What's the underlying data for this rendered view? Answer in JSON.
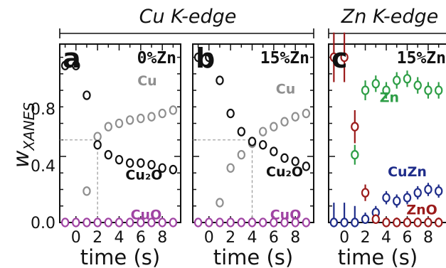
{
  "header": {
    "cu_title": "Cu K-edge",
    "zn_title": "Zn K-edge"
  },
  "y_axis": {
    "label_main": "w",
    "label_sub": "XANES",
    "ticks": [
      "0.0",
      "0.4",
      "0.8"
    ]
  },
  "x_axis": {
    "label": "time (s)",
    "ticks": [
      "0",
      "2",
      "4",
      "6",
      "8"
    ]
  },
  "chart_data": [
    {
      "type": "scatter",
      "panel": "a",
      "condition": "0%Zn",
      "xlabel": "time (s)",
      "ylabel": "wXANES",
      "xlim": [
        -1.5,
        9.7
      ],
      "ylim": [
        0,
        1.08
      ],
      "series": [
        {
          "name": "Cu",
          "color": "#8f8f8f",
          "label_pos": [
            6.6,
            0.83
          ],
          "x": [
            1,
            2,
            3,
            4,
            5,
            6,
            7,
            8,
            9
          ],
          "y": [
            0.19,
            0.52,
            0.58,
            0.6,
            0.62,
            0.63,
            0.64,
            0.66,
            0.68
          ]
        },
        {
          "name": "Cu₂O",
          "color": "#111111",
          "label_pos": [
            6.3,
            0.26
          ],
          "x": [
            -1,
            0,
            1,
            2,
            3,
            4,
            5,
            6,
            7,
            8,
            9
          ],
          "y": [
            0.95,
            0.95,
            0.77,
            0.47,
            0.41,
            0.38,
            0.36,
            0.36,
            0.35,
            0.33,
            0.32
          ]
        },
        {
          "name": "CuO",
          "color": "#a043a3",
          "label_pos": [
            6.5,
            0.02
          ],
          "x": [
            -1,
            0,
            1,
            2,
            3,
            4,
            5,
            6,
            7,
            8,
            9
          ],
          "y": [
            0,
            0,
            0,
            0,
            0,
            0,
            0,
            0,
            0,
            0,
            0
          ]
        }
      ],
      "crossover": {
        "x": 2,
        "y": 0.5
      }
    },
    {
      "type": "scatter",
      "panel": "b",
      "condition": "15%Zn",
      "xlabel": "time (s)",
      "ylabel": "wXANES",
      "xlim": [
        -1.5,
        9.7
      ],
      "ylim": [
        0,
        1.08
      ],
      "series": [
        {
          "name": "Cu",
          "color": "#8f8f8f",
          "label_pos": [
            7.1,
            0.78
          ],
          "x": [
            1,
            2,
            3,
            4,
            5,
            6,
            7,
            8,
            9
          ],
          "y": [
            0.12,
            0.33,
            0.41,
            0.48,
            0.55,
            0.58,
            0.61,
            0.64,
            0.66
          ]
        },
        {
          "name": "Cu₂O",
          "color": "#111111",
          "label_pos": [
            7.0,
            0.28
          ],
          "x": [
            -1,
            0,
            1,
            2,
            3,
            4,
            5,
            6,
            7,
            8,
            9
          ],
          "y": [
            1.0,
            1.0,
            0.86,
            0.66,
            0.55,
            0.49,
            0.47,
            0.43,
            0.39,
            0.37,
            0.34
          ]
        },
        {
          "name": "CuO",
          "color": "#a043a3",
          "label_pos": [
            7.1,
            0.02
          ],
          "x": [
            -1,
            0,
            1,
            2,
            3,
            4,
            5,
            6,
            7,
            8,
            9
          ],
          "y": [
            0,
            0,
            0,
            0,
            0,
            0,
            0,
            0,
            0,
            0,
            0
          ]
        }
      ],
      "crossover": {
        "x": 4,
        "y": 0.5
      }
    },
    {
      "type": "scatter",
      "panel": "c",
      "condition": "15%Zn",
      "xlabel": "time (s)",
      "ylabel": "wXANES",
      "xlim": [
        -1.5,
        9.7
      ],
      "ylim": [
        0,
        1.08
      ],
      "series": [
        {
          "name": "Zn",
          "color": "#2e9e46",
          "label_pos": [
            4.3,
            0.73
          ],
          "x": [
            1,
            2,
            3,
            4,
            5,
            6,
            7,
            8,
            9
          ],
          "y": [
            0.41,
            0.8,
            0.84,
            0.8,
            0.86,
            0.87,
            0.83,
            0.8,
            0.8
          ],
          "err": [
            0.06,
            0.06,
            0.05,
            0.05,
            0.05,
            0.05,
            0.05,
            0.05,
            0.05
          ]
        },
        {
          "name": "CuZn",
          "color": "#1f2d8a",
          "label_pos": [
            6.0,
            0.28
          ],
          "x": [
            -1,
            0,
            1,
            2,
            3,
            4,
            5,
            6,
            7,
            8,
            9
          ],
          "y": [
            0,
            0,
            0,
            0.02,
            0.06,
            0.15,
            0.13,
            0.15,
            0.18,
            0.2,
            0.19
          ],
          "err": [
            0.12,
            0.12,
            0.1,
            0.04,
            0.04,
            0.04,
            0.04,
            0.04,
            0.04,
            0.04,
            0.04
          ]
        },
        {
          "name": "ZnO",
          "color": "#9b1b1b",
          "label_pos": [
            7.4,
            0.05
          ],
          "x": [
            -1,
            0,
            1,
            2,
            3,
            4,
            5,
            6,
            7,
            8,
            9
          ],
          "y": [
            1.0,
            1.0,
            0.58,
            0.18,
            0.02,
            0.0,
            0.0,
            0.0,
            0.0,
            0.0,
            0.0
          ],
          "err": [
            0.15,
            0.15,
            0.1,
            0.05,
            0.03,
            0.03,
            0.03,
            0.03,
            0.03,
            0.03,
            0.03
          ]
        }
      ]
    }
  ]
}
